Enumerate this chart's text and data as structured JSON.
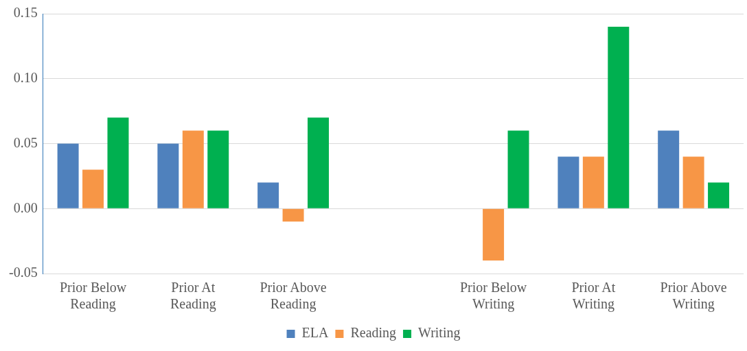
{
  "chart_data": {
    "type": "bar",
    "categories": [
      "Prior Below Reading",
      "Prior At Reading",
      "Prior Above Reading",
      null,
      "Prior Below Writing",
      "Prior At Writing",
      "Prior Above Writing"
    ],
    "series": [
      {
        "name": "ELA",
        "color": "#4f81bd",
        "values": [
          0.05,
          0.05,
          0.02,
          null,
          0,
          0.04,
          0.06
        ]
      },
      {
        "name": "Reading",
        "color": "#f79646",
        "values": [
          0.03,
          0.06,
          -0.01,
          null,
          -0.04,
          0.04,
          0.04
        ]
      },
      {
        "name": "Writing",
        "color": "#00b050",
        "values": [
          0.07,
          0.06,
          0.07,
          null,
          0.06,
          0.14,
          0.02
        ]
      }
    ],
    "ylim": [
      -0.05,
      0.15
    ],
    "yticks": [
      -0.05,
      {
        "value": 0,
        "label": "0.00"
      },
      0.05,
      {
        "value": 0.1,
        "label": "0.10"
      },
      0.15
    ],
    "grid": "y",
    "legend": "bottom"
  }
}
